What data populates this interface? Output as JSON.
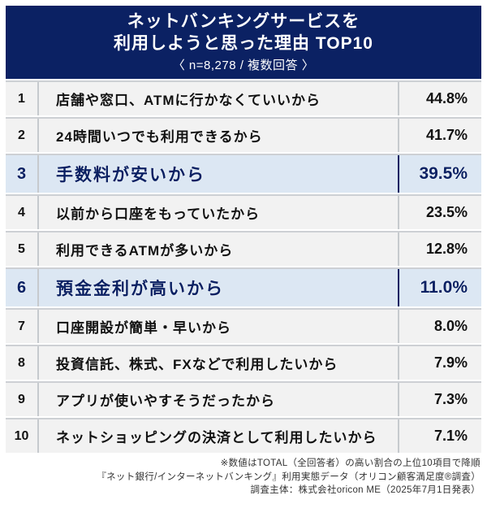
{
  "header": {
    "title_line1": "ネットバンキングサービスを",
    "title_line2": "利用しようと思った理由 TOP10",
    "subtitle": "〈 n=8,278 / 複数回答 〉"
  },
  "table": {
    "rows": [
      {
        "rank": "1",
        "reason": "店舗や窓口、ATMに行かなくていいから",
        "percent": "44.8%",
        "highlighted": false
      },
      {
        "rank": "2",
        "reason": "24時間いつでも利用できるから",
        "percent": "41.7%",
        "highlighted": false
      },
      {
        "rank": "3",
        "reason": "手数料が安いから",
        "percent": "39.5%",
        "highlighted": true
      },
      {
        "rank": "4",
        "reason": "以前から口座をもっていたから",
        "percent": "23.5%",
        "highlighted": false
      },
      {
        "rank": "5",
        "reason": "利用できるATMが多いから",
        "percent": "12.8%",
        "highlighted": false
      },
      {
        "rank": "6",
        "reason": "預金金利が高いから",
        "percent": "11.0%",
        "highlighted": true
      },
      {
        "rank": "7",
        "reason": "口座開設が簡単・早いから",
        "percent": "8.0%",
        "highlighted": false
      },
      {
        "rank": "8",
        "reason": "投資信託、株式、FXなどで利用したいから",
        "percent": "7.9%",
        "highlighted": false
      },
      {
        "rank": "9",
        "reason": "アプリが使いやすそうだったから",
        "percent": "7.3%",
        "highlighted": false
      },
      {
        "rank": "10",
        "reason": "ネットショッピングの決済として利用したいから",
        "percent": "7.1%",
        "highlighted": false
      }
    ]
  },
  "footer": {
    "note1": "※数値はTOTAL（全回答者）の高い割合の上位10項目で降順",
    "note2": "『ネット銀行/インターネットバンキング』利用実態データ（オリコン顧客満足度®調査）",
    "note3": "調査主体：株式会社oricon ME（2025年7月1日発表）"
  },
  "colors": {
    "header_navy": "#0b2163",
    "highlight_bg": "#dce7f3",
    "highlight_text": "#0b2163",
    "row_bg": "#f2f2f2",
    "separator_gray": "#c6cace",
    "footer_text": "#333333"
  },
  "chart_data": {
    "type": "table",
    "title": "ネットバンキングサービスを利用しようと思った理由 TOP10",
    "subtitle": "〈 n=8,278 / 複数回答 〉",
    "categories": [
      "店舗や窓口、ATMに行かなくていいから",
      "24時間いつでも利用できるから",
      "手数料が安いから",
      "以前から口座をもっていたから",
      "利用できるATMが多いから",
      "預金金利が高いから",
      "口座開設が簡単・早いから",
      "投資信託、株式、FXなどで利用したいから",
      "アプリが使いやすそうだったから",
      "ネットショッピングの決済として利用したいから"
    ],
    "values": [
      44.8,
      41.7,
      39.5,
      23.5,
      12.8,
      11.0,
      8.0,
      7.9,
      7.3,
      7.1
    ],
    "unit": "%",
    "highlighted_ranks": [
      3,
      6
    ],
    "annotations": [
      "※数値はTOTAL（全回答者）の高い割合の上位10項目で降順",
      "『ネット銀行/インターネットバンキング』利用実態データ（オリコン顧客満足度®調査）",
      "調査主体：株式会社oricon ME（2025年7月1日発表）"
    ]
  }
}
